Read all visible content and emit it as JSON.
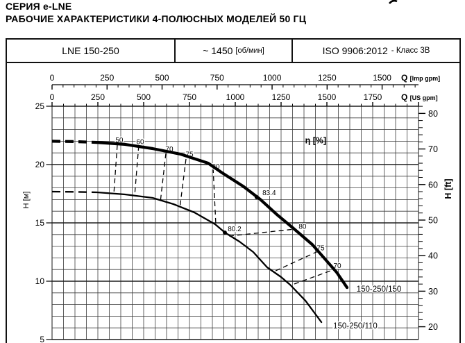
{
  "page": {
    "title_line1": "СЕРИЯ e-LNE",
    "title_line2": "РАБОЧИЕ ХАРАКТЕРИСТИКИ 4-ПОЛЮСНЫХ МОДЕЛЕЙ 50 ГЦ"
  },
  "header_table": {
    "model": "LNE 150-250",
    "speed": "~ 1450",
    "speed_unit": "[об/мин]",
    "standard": "ISO 9906:2012",
    "standard_class": "- Класс 3В"
  },
  "chart_data": {
    "type": "line",
    "description": "Pump H-Q performance curves, 4-pole 50 Hz, LNE 150-250",
    "grid": "on",
    "x_axes": [
      {
        "id": "imp",
        "label": "Q",
        "unit": "[Imp gpm]",
        "ticks": [
          0,
          250,
          500,
          750,
          1000,
          1250,
          1500
        ],
        "minor_step": 50,
        "minor_max": 1650,
        "to_us_factor": 1.20095
      },
      {
        "id": "us",
        "label": "Q",
        "unit": "[US gpm]",
        "ticks": [
          0,
          250,
          500,
          750,
          1000,
          1250,
          1500,
          1750
        ],
        "minor_step": 62.5,
        "max": 2000
      }
    ],
    "y_axes": [
      {
        "id": "m",
        "label": "H [м]",
        "ticks": [
          25,
          20,
          15,
          10,
          5
        ],
        "range": [
          5,
          25
        ],
        "minor_step": 1
      },
      {
        "id": "ft",
        "label": "H [ft]",
        "ticks": [
          80,
          70,
          60,
          50,
          40,
          30,
          20
        ],
        "minor_step": 2,
        "m_per_ft": 0.3048
      }
    ],
    "eta_label": {
      "text": "η [%]",
      "at": [
        1439,
        22.05
      ]
    },
    "series": [
      {
        "name": "150-250/150",
        "style": "thick",
        "dashed_below_gpm": 246,
        "points": [
          [
            0,
            22.0
          ],
          [
            120,
            21.97
          ],
          [
            246,
            21.9
          ],
          [
            398,
            21.73
          ],
          [
            549,
            21.37
          ],
          [
            701,
            20.89
          ],
          [
            852,
            20.12
          ],
          [
            928,
            19.29
          ],
          [
            1042,
            18.15
          ],
          [
            1136,
            17.02
          ],
          [
            1231,
            15.66
          ],
          [
            1314,
            14.58
          ],
          [
            1420,
            13.15
          ],
          [
            1496,
            11.79
          ],
          [
            1553,
            10.77
          ],
          [
            1610,
            9.46
          ]
        ],
        "label_at": [
          1784,
          9.35
        ]
      },
      {
        "name": "150-250/110",
        "style": "thin",
        "dashed_below_gpm": 246,
        "points": [
          [
            0,
            17.68
          ],
          [
            120,
            17.66
          ],
          [
            246,
            17.62
          ],
          [
            398,
            17.44
          ],
          [
            549,
            17.14
          ],
          [
            663,
            16.61
          ],
          [
            777,
            15.89
          ],
          [
            890,
            14.88
          ],
          [
            943,
            14.17
          ],
          [
            1023,
            13.39
          ],
          [
            1098,
            12.5
          ],
          [
            1174,
            11.19
          ],
          [
            1250,
            10.36
          ],
          [
            1299,
            9.7
          ],
          [
            1383,
            8.33
          ],
          [
            1470,
            6.49
          ]
        ],
        "label_at": [
          1655,
          6.19
        ]
      }
    ],
    "best_efficiency_points": [
      {
        "label": "83.4",
        "at": [
          1117,
          17.2
        ],
        "label_at": [
          1185,
          17.6
        ]
      },
      {
        "label": "80.2",
        "at": [
          943,
          14.17
        ],
        "label_at": [
          996,
          14.5
        ]
      }
    ],
    "efficiency_contours": [
      {
        "label": "50",
        "from": [
          356,
          21.67
        ],
        "to": [
          337,
          17.44
        ],
        "label_at": [
          367,
          22.1
        ]
      },
      {
        "label": "60",
        "from": [
          473,
          21.61
        ],
        "to": [
          451,
          17.38
        ],
        "label_at": [
          481,
          21.95
        ]
      },
      {
        "label": "70",
        "from": [
          621,
          20.95
        ],
        "to": [
          591,
          16.79
        ],
        "label_at": [
          640,
          21.35
        ]
      },
      {
        "label": "75",
        "from": [
          731,
          20.48
        ],
        "to": [
          697,
          16.25
        ],
        "label_at": [
          750,
          20.9
        ]
      },
      {
        "label": "80",
        "from": [
          879,
          19.7
        ],
        "to": [
          894,
          14.82
        ],
        "label_at": [
          894,
          19.85
        ]
      },
      {
        "label": "80",
        "from": [
          966,
          13.87
        ],
        "to": [
          1322,
          14.46
        ],
        "label_at": [
          1367,
          14.7
        ]
      },
      {
        "label": "75",
        "from": [
          1220,
          10.89
        ],
        "to": [
          1451,
          12.56
        ],
        "label_at": [
          1466,
          12.85
        ]
      },
      {
        "label": "70",
        "from": [
          1322,
          9.76
        ],
        "to": [
          1542,
          11.02
        ],
        "label_at": [
          1557,
          11.35
        ]
      }
    ],
    "colors": {
      "curve": "#000000",
      "grid_minor": "#3b3b3b",
      "grid_major": "#1e1e1e",
      "frame": "#111111"
    }
  }
}
